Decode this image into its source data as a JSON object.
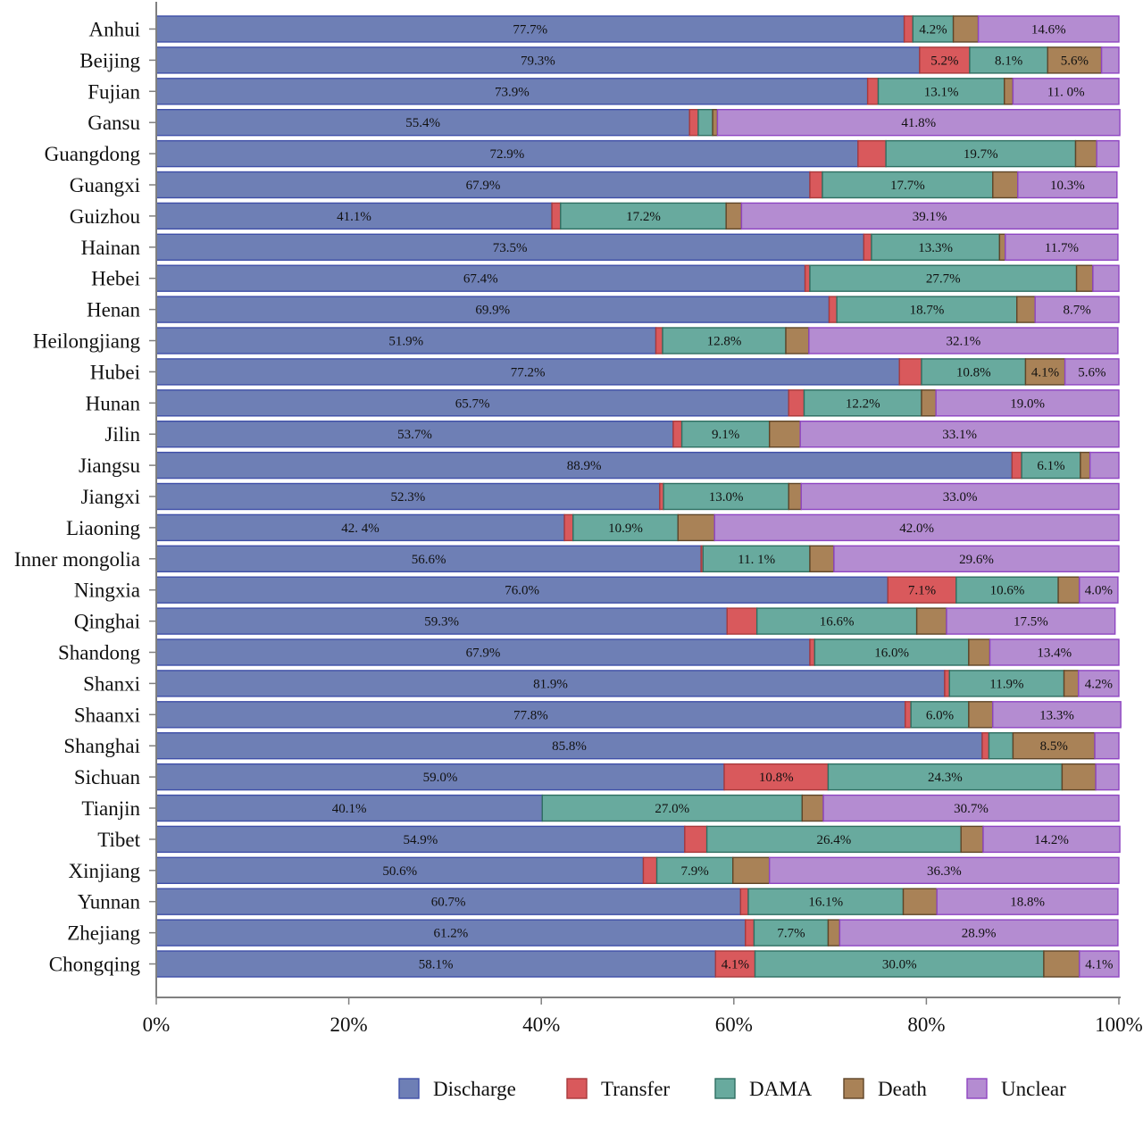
{
  "chart_data": {
    "type": "bar",
    "orientation": "horizontal",
    "stacked": "percent",
    "categories": [
      "Anhui",
      "Beijing",
      "Fujian",
      "Gansu",
      "Guangdong",
      "Guangxi",
      "Guizhou",
      "Hainan",
      "Hebei",
      "Henan",
      "Heilongjiang",
      "Hubei",
      "Hunan",
      "Jilin",
      "Jiangsu",
      "Jiangxi",
      "Liaoning",
      "Inner mongolia",
      "Ningxia",
      "Qinghai",
      "Shandong",
      "Shanxi",
      "Shaanxi",
      "Shanghai",
      "Sichuan",
      "Tianjin",
      "Tibet",
      "Xinjiang",
      "Yunnan",
      "Zhejiang",
      "Chongqing"
    ],
    "series": [
      {
        "name": "Discharge",
        "color": "#6e7fb5",
        "edge": "#3f4fa8",
        "values": [
          77.7,
          79.3,
          73.9,
          55.4,
          72.9,
          67.9,
          41.1,
          73.5,
          67.4,
          69.9,
          51.9,
          77.2,
          65.7,
          53.7,
          88.9,
          52.3,
          42.4,
          56.6,
          76.0,
          59.3,
          67.9,
          81.9,
          77.8,
          85.8,
          59.0,
          40.1,
          54.9,
          50.6,
          60.7,
          61.2,
          58.1
        ]
      },
      {
        "name": "Transfer",
        "color": "#d9595c",
        "edge": "#a83a3c",
        "values": [
          0.9,
          5.2,
          1.1,
          0.9,
          2.9,
          1.3,
          0.9,
          0.8,
          0.5,
          0.8,
          0.7,
          2.3,
          1.6,
          0.9,
          1.0,
          0.4,
          0.9,
          0.2,
          7.1,
          3.1,
          0.5,
          0.5,
          0.6,
          0.7,
          10.8,
          0,
          2.3,
          1.4,
          0.8,
          0.9,
          4.1
        ]
      },
      {
        "name": "DAMA",
        "color": "#68aa9e",
        "edge": "#2f6f62",
        "values": [
          4.2,
          8.1,
          13.1,
          1.5,
          19.7,
          17.7,
          17.2,
          13.3,
          27.7,
          18.7,
          12.8,
          10.8,
          12.2,
          9.1,
          6.1,
          13.0,
          10.9,
          11.1,
          10.6,
          16.6,
          16.0,
          11.9,
          6.0,
          2.5,
          24.3,
          27.0,
          26.4,
          7.9,
          16.1,
          7.7,
          30.0
        ]
      },
      {
        "name": "Death",
        "color": "#a98257",
        "edge": "#5f4528",
        "values": [
          2.6,
          5.6,
          0.9,
          0.5,
          2.2,
          2.6,
          1.6,
          0.6,
          1.7,
          1.9,
          2.4,
          4.1,
          1.5,
          3.2,
          1.0,
          1.3,
          3.8,
          2.5,
          2.2,
          3.1,
          2.2,
          1.5,
          2.5,
          8.5,
          3.5,
          2.2,
          2.3,
          3.8,
          3.5,
          1.2,
          3.7
        ]
      },
      {
        "name": "Unclear",
        "color": "#b48cd1",
        "edge": "#8e45c2",
        "values": [
          14.6,
          1.8,
          11.0,
          41.8,
          2.3,
          10.3,
          39.1,
          11.7,
          2.7,
          8.7,
          32.1,
          5.6,
          19.0,
          33.1,
          3.0,
          33.0,
          42.0,
          29.6,
          4.0,
          17.5,
          13.4,
          4.2,
          13.3,
          2.5,
          2.4,
          30.7,
          14.2,
          36.3,
          18.8,
          28.9,
          4.1
        ]
      }
    ],
    "bar_labels": [
      [
        "77.7%",
        "",
        "4.2%",
        "",
        "14.6%"
      ],
      [
        "79.3%",
        "5.2%",
        "8.1%",
        "5.6%",
        ""
      ],
      [
        "73.9%",
        "",
        "13.1%",
        "",
        "11. 0%"
      ],
      [
        "55.4%",
        "",
        "",
        "",
        "41.8%"
      ],
      [
        "72.9%",
        "",
        "19.7%",
        "",
        ""
      ],
      [
        "67.9%",
        "",
        "17.7%",
        "",
        "10.3%"
      ],
      [
        "41.1%",
        "",
        "17.2%",
        "",
        "39.1%"
      ],
      [
        "73.5%",
        "",
        "13.3%",
        "",
        "11.7%"
      ],
      [
        "67.4%",
        "",
        "27.7%",
        "",
        ""
      ],
      [
        "69.9%",
        "",
        "18.7%",
        "",
        "8.7%"
      ],
      [
        "51.9%",
        "",
        "12.8%",
        "",
        "32.1%"
      ],
      [
        "77.2%",
        "",
        "10.8%",
        "4.1%",
        "5.6%"
      ],
      [
        "65.7%",
        "",
        "12.2%",
        "",
        "19.0%"
      ],
      [
        "53.7%",
        "",
        "9.1%",
        "",
        "33.1%"
      ],
      [
        "88.9%",
        "",
        "6.1%",
        "",
        ""
      ],
      [
        "52.3%",
        "",
        "13.0%",
        "",
        "33.0%"
      ],
      [
        "42. 4%",
        "",
        "10.9%",
        "",
        "42.0%"
      ],
      [
        "56.6%",
        "",
        "11. 1%",
        "",
        "29.6%"
      ],
      [
        "76.0%",
        "7.1%",
        "10.6%",
        "",
        "4.0%"
      ],
      [
        "59.3%",
        "",
        "16.6%",
        "",
        "17.5%"
      ],
      [
        "67.9%",
        "",
        "16.0%",
        "",
        "13.4%"
      ],
      [
        "81.9%",
        "",
        "11.9%",
        "",
        "4.2%"
      ],
      [
        "77.8%",
        "",
        "6.0%",
        "",
        "13.3%"
      ],
      [
        "85.8%",
        "",
        "",
        "8.5%",
        ""
      ],
      [
        "59.0%",
        "10.8%",
        "24.3%",
        "",
        ""
      ],
      [
        "40.1%",
        "",
        "27.0%",
        "",
        "30.7%"
      ],
      [
        "54.9%",
        "",
        "26.4%",
        "",
        "14.2%"
      ],
      [
        "50.6%",
        "",
        "7.9%",
        "",
        "36.3%"
      ],
      [
        "60.7%",
        "",
        "16.1%",
        "",
        "18.8%"
      ],
      [
        "61.2%",
        "",
        "7.7%",
        "",
        "28.9%"
      ],
      [
        "58.1%",
        "4.1%",
        "30.0%",
        "",
        "4.1%"
      ]
    ],
    "xticks": [
      "0%",
      "20%",
      "40%",
      "60%",
      "80%",
      "100%"
    ],
    "xlim": [
      0,
      100
    ],
    "title": "",
    "xlabel": "",
    "ylabel": "",
    "legend_position": "bottom",
    "grid": false
  }
}
